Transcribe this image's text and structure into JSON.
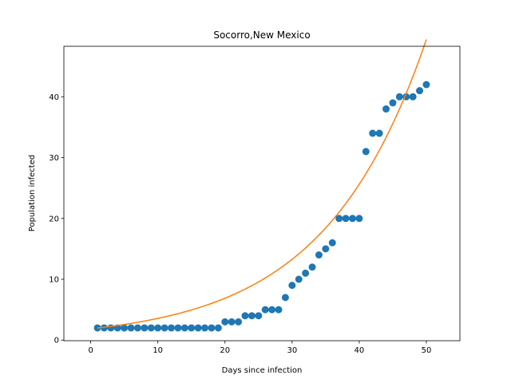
{
  "chart_data": {
    "type": "scatter",
    "title": "Socorro,New Mexico",
    "xlabel": "Days since infection",
    "ylabel": "Population infected",
    "xlim": [
      -4,
      55
    ],
    "ylim": [
      -0.1,
      48.3
    ],
    "xticks": [
      0,
      10,
      20,
      30,
      40,
      50
    ],
    "yticks": [
      0,
      10,
      20,
      30,
      40
    ],
    "xtick_labels": [
      "0",
      "10",
      "20",
      "30",
      "40",
      "50"
    ],
    "ytick_labels": [
      "0",
      "10",
      "20",
      "30",
      "40"
    ],
    "grid": false,
    "series": [
      {
        "kind": "scatter",
        "color": "#1f77b4",
        "x": [
          1,
          2,
          3,
          4,
          5,
          6,
          7,
          8,
          9,
          10,
          11,
          12,
          13,
          14,
          15,
          16,
          17,
          18,
          19,
          20,
          21,
          22,
          23,
          24,
          25,
          26,
          27,
          28,
          29,
          30,
          31,
          32,
          33,
          34,
          35,
          36,
          37,
          38,
          39,
          40,
          41,
          42,
          43,
          44,
          45,
          46,
          47,
          48,
          49,
          50
        ],
        "y": [
          2,
          2,
          2,
          2,
          2,
          2,
          2,
          2,
          2,
          2,
          2,
          2,
          2,
          2,
          2,
          2,
          2,
          2,
          2,
          3,
          3,
          3,
          4,
          4,
          4,
          5,
          5,
          5,
          7,
          9,
          10,
          11,
          12,
          14,
          15,
          16,
          20,
          20,
          20,
          20,
          31,
          34,
          34,
          38,
          39,
          40,
          40,
          40,
          41,
          42
        ]
      },
      {
        "kind": "line",
        "color": "#ff7f0e",
        "model": "exponential",
        "a": 1.85,
        "b": 0.0657,
        "x_range": [
          1,
          50
        ]
      }
    ]
  }
}
